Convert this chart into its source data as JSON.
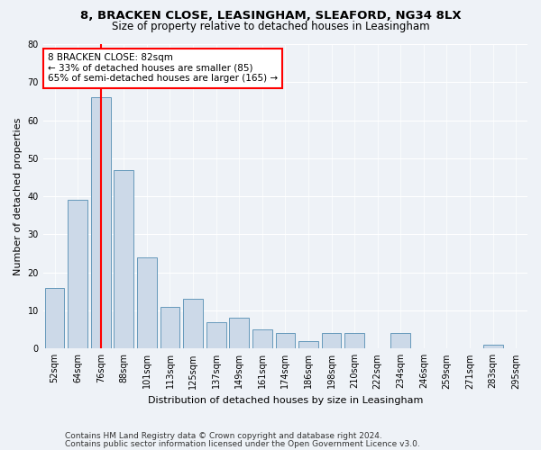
{
  "title1": "8, BRACKEN CLOSE, LEASINGHAM, SLEAFORD, NG34 8LX",
  "title2": "Size of property relative to detached houses in Leasingham",
  "xlabel": "Distribution of detached houses by size in Leasingham",
  "ylabel": "Number of detached properties",
  "categories": [
    "52sqm",
    "64sqm",
    "76sqm",
    "88sqm",
    "101sqm",
    "113sqm",
    "125sqm",
    "137sqm",
    "149sqm",
    "161sqm",
    "174sqm",
    "186sqm",
    "198sqm",
    "210sqm",
    "222sqm",
    "234sqm",
    "246sqm",
    "259sqm",
    "271sqm",
    "283sqm",
    "295sqm"
  ],
  "values": [
    16,
    39,
    66,
    47,
    24,
    11,
    13,
    7,
    8,
    5,
    4,
    2,
    4,
    4,
    0,
    4,
    0,
    0,
    0,
    1,
    0
  ],
  "bar_color": "#ccd9e8",
  "bar_edge_color": "#6699bb",
  "red_line_index": 2,
  "annotation_text": "8 BRACKEN CLOSE: 82sqm\n← 33% of detached houses are smaller (85)\n65% of semi-detached houses are larger (165) →",
  "annotation_box_color": "white",
  "annotation_box_edge": "red",
  "ylim": [
    0,
    80
  ],
  "yticks": [
    0,
    10,
    20,
    30,
    40,
    50,
    60,
    70,
    80
  ],
  "footer1": "Contains HM Land Registry data © Crown copyright and database right 2024.",
  "footer2": "Contains public sector information licensed under the Open Government Licence v3.0.",
  "background_color": "#eef2f7",
  "plot_background_color": "#eef2f7",
  "title1_fontsize": 9.5,
  "title2_fontsize": 8.5,
  "xlabel_fontsize": 8,
  "ylabel_fontsize": 8,
  "tick_fontsize": 7,
  "footer_fontsize": 6.5,
  "annotation_fontsize": 7.5
}
